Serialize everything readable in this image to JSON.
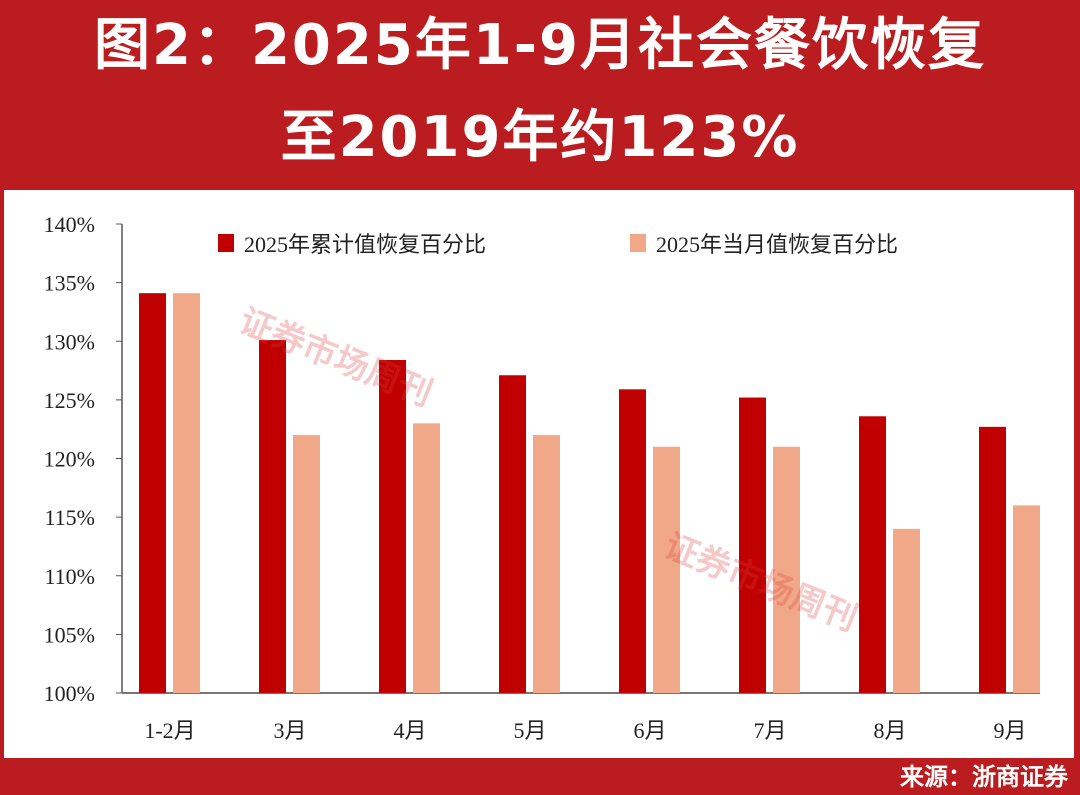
{
  "header": {
    "title_line1": "图2：2025年1-9月社会餐饮恢复",
    "title_line2": "至2019年约123%"
  },
  "footer": {
    "source": "来源：浙商证券"
  },
  "watermark": "证券市场周刊",
  "colors": {
    "background": "#ba1c1f",
    "series1": "#c00000",
    "series2": "#f0a888"
  },
  "chart_data": {
    "type": "bar",
    "title": "",
    "xlabel": "",
    "ylabel": "",
    "categories": [
      "1-2月",
      "3月",
      "4月",
      "5月",
      "6月",
      "7月",
      "8月",
      "9月"
    ],
    "ylim": [
      100,
      140
    ],
    "yticks": [
      "100%",
      "105%",
      "110%",
      "115%",
      "120%",
      "125%",
      "130%",
      "135%",
      "140%"
    ],
    "grid": false,
    "legend": "top",
    "series": [
      {
        "name": "2025年累计值恢复百分比",
        "values": [
          134.1,
          130.1,
          128.4,
          127.1,
          125.9,
          125.2,
          123.6,
          122.7
        ]
      },
      {
        "name": "2025年当月值恢复百分比",
        "values": [
          134.1,
          122,
          123,
          122,
          121,
          121,
          114,
          116
        ]
      }
    ]
  }
}
